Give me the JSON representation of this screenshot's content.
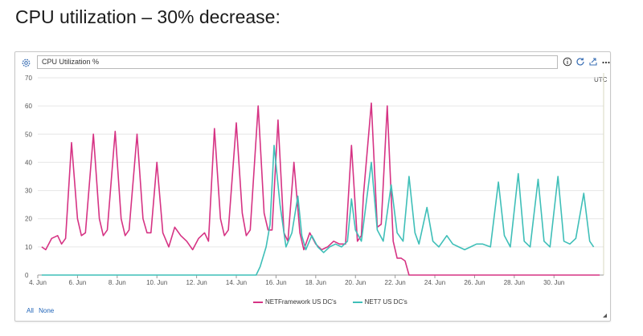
{
  "heading": "CPU utilization – 30% decrease:",
  "panel": {
    "title_value": "CPU Utilization %",
    "timezone": "UTC",
    "select_all": "All",
    "select_none": "None",
    "icons": [
      "gear-icon",
      "info-icon",
      "refresh-icon",
      "share-icon",
      "more-icon"
    ]
  },
  "chart_data": {
    "type": "line",
    "ylim": [
      0,
      70
    ],
    "yticks": [
      0,
      10,
      20,
      30,
      40,
      50,
      60,
      70
    ],
    "xlim": [
      4,
      32.5
    ],
    "xticks": [
      4,
      6,
      8,
      10,
      12,
      14,
      16,
      18,
      20,
      22,
      24,
      26,
      28,
      30
    ],
    "xtick_labels": [
      "4. Jun",
      "6. Jun",
      "8. Jun",
      "10. Jun",
      "12. Jun",
      "14. Jun",
      "16. Jun",
      "18. Jun",
      "20. Jun",
      "22. Jun",
      "24. Jun",
      "26. Jun",
      "28. Jun",
      "30. Jun"
    ],
    "legend_position": "bottom",
    "series": [
      {
        "name": "NETFramework US DC's",
        "color": "#d63384",
        "points": [
          [
            4.2,
            10
          ],
          [
            4.4,
            9
          ],
          [
            4.7,
            13
          ],
          [
            5.0,
            14
          ],
          [
            5.2,
            11
          ],
          [
            5.4,
            13
          ],
          [
            5.7,
            47
          ],
          [
            6.0,
            20
          ],
          [
            6.2,
            14
          ],
          [
            6.4,
            15
          ],
          [
            6.8,
            50
          ],
          [
            7.1,
            20
          ],
          [
            7.3,
            14
          ],
          [
            7.5,
            16
          ],
          [
            7.9,
            51
          ],
          [
            8.2,
            20
          ],
          [
            8.4,
            14
          ],
          [
            8.6,
            16
          ],
          [
            9.0,
            50
          ],
          [
            9.3,
            20
          ],
          [
            9.5,
            15
          ],
          [
            9.7,
            15
          ],
          [
            10.0,
            40
          ],
          [
            10.3,
            15
          ],
          [
            10.6,
            10
          ],
          [
            10.9,
            17
          ],
          [
            11.2,
            14
          ],
          [
            11.5,
            12
          ],
          [
            11.8,
            9
          ],
          [
            12.1,
            13
          ],
          [
            12.4,
            15
          ],
          [
            12.6,
            12
          ],
          [
            12.9,
            52
          ],
          [
            13.2,
            20
          ],
          [
            13.4,
            14
          ],
          [
            13.6,
            16
          ],
          [
            14.0,
            54
          ],
          [
            14.3,
            22
          ],
          [
            14.5,
            14
          ],
          [
            14.7,
            16
          ],
          [
            15.1,
            60
          ],
          [
            15.4,
            22
          ],
          [
            15.6,
            16
          ],
          [
            15.8,
            16
          ],
          [
            16.1,
            55
          ],
          [
            16.4,
            15
          ],
          [
            16.6,
            12
          ],
          [
            16.9,
            40
          ],
          [
            17.2,
            15
          ],
          [
            17.4,
            9
          ],
          [
            17.7,
            15
          ],
          [
            18.0,
            11
          ],
          [
            18.3,
            9
          ],
          [
            18.6,
            10
          ],
          [
            18.9,
            12
          ],
          [
            19.2,
            11
          ],
          [
            19.5,
            11
          ],
          [
            19.8,
            46
          ],
          [
            20.1,
            12
          ],
          [
            20.3,
            14
          ],
          [
            20.4,
            28
          ],
          [
            20.8,
            61
          ],
          [
            21.1,
            17
          ],
          [
            21.3,
            18
          ],
          [
            21.6,
            60
          ],
          [
            21.9,
            12
          ],
          [
            22.1,
            6
          ],
          [
            22.3,
            6
          ],
          [
            22.5,
            5
          ],
          [
            22.7,
            0
          ],
          [
            32.3,
            0
          ]
        ]
      },
      {
        "name": "NET7 US DC's",
        "color": "#3fbfb8",
        "points": [
          [
            4.2,
            0
          ],
          [
            15.0,
            0
          ],
          [
            15.2,
            3
          ],
          [
            15.5,
            10
          ],
          [
            15.7,
            18
          ],
          [
            15.9,
            46
          ],
          [
            16.2,
            25
          ],
          [
            16.5,
            10
          ],
          [
            16.8,
            15
          ],
          [
            17.1,
            28
          ],
          [
            17.3,
            14
          ],
          [
            17.5,
            9
          ],
          [
            17.8,
            14
          ],
          [
            18.1,
            10
          ],
          [
            18.4,
            8
          ],
          [
            18.7,
            10
          ],
          [
            19.0,
            11
          ],
          [
            19.3,
            10
          ],
          [
            19.6,
            12
          ],
          [
            19.8,
            27
          ],
          [
            20.0,
            16
          ],
          [
            20.3,
            12
          ],
          [
            20.8,
            40
          ],
          [
            21.1,
            16
          ],
          [
            21.4,
            12
          ],
          [
            21.8,
            32
          ],
          [
            22.1,
            15
          ],
          [
            22.4,
            12
          ],
          [
            22.7,
            35
          ],
          [
            23.0,
            15
          ],
          [
            23.2,
            11
          ],
          [
            23.6,
            24
          ],
          [
            23.9,
            12
          ],
          [
            24.2,
            10
          ],
          [
            24.6,
            14
          ],
          [
            24.9,
            11
          ],
          [
            25.2,
            10
          ],
          [
            25.5,
            9
          ],
          [
            25.8,
            10
          ],
          [
            26.1,
            11
          ],
          [
            26.4,
            11
          ],
          [
            26.8,
            10
          ],
          [
            27.2,
            33
          ],
          [
            27.5,
            14
          ],
          [
            27.8,
            10
          ],
          [
            28.2,
            36
          ],
          [
            28.5,
            12
          ],
          [
            28.8,
            10
          ],
          [
            29.2,
            34
          ],
          [
            29.5,
            12
          ],
          [
            29.8,
            10
          ],
          [
            30.2,
            35
          ],
          [
            30.5,
            12
          ],
          [
            30.8,
            11
          ],
          [
            31.1,
            13
          ],
          [
            31.5,
            29
          ],
          [
            31.8,
            12
          ],
          [
            32.0,
            10
          ]
        ]
      }
    ]
  }
}
